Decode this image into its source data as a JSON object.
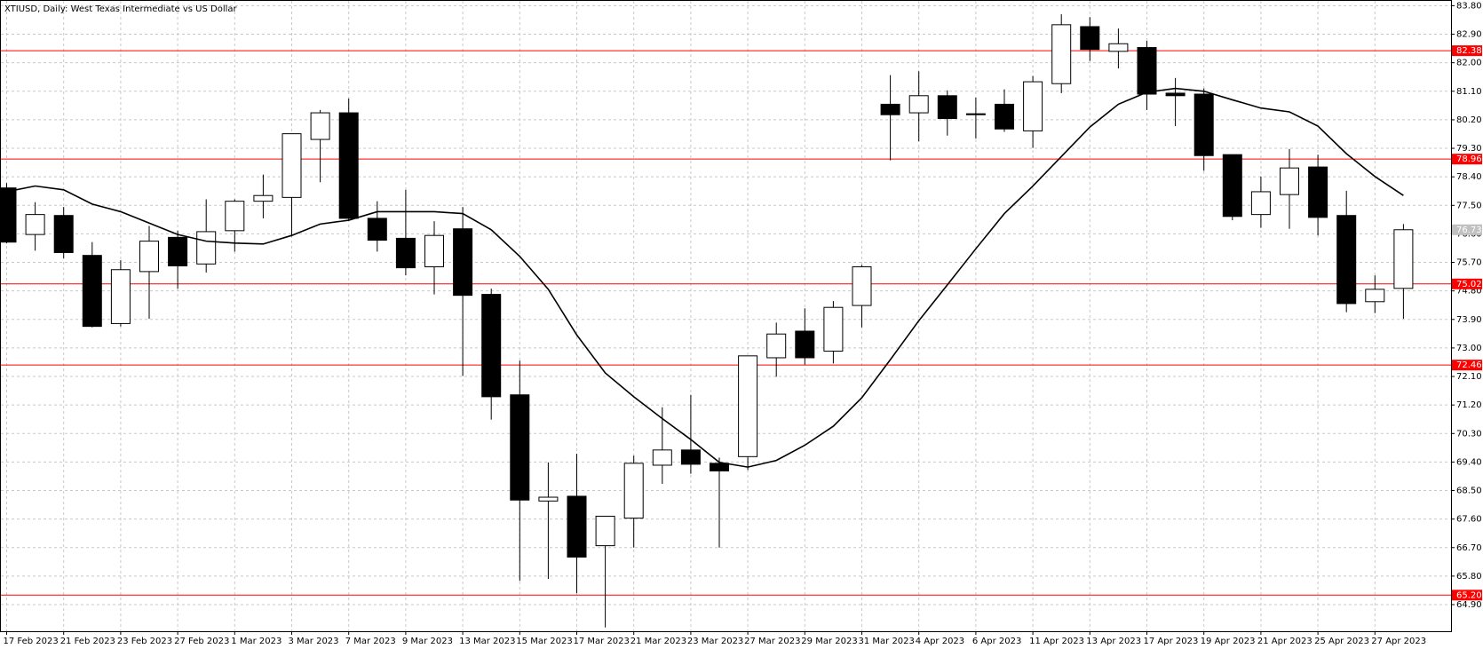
{
  "chart_data": {
    "type": "candlestick",
    "title": "XTIUSD, Daily:  West Texas Intermediate vs US Dollar",
    "categories": [
      "17 Feb 2023",
      null,
      "21 Feb 2023",
      null,
      "23 Feb 2023",
      null,
      "27 Feb 2023",
      null,
      "1 Mar 2023",
      null,
      "3 Mar 2023",
      null,
      "7 Mar 2023",
      null,
      "9 Mar 2023",
      null,
      "13 Mar 2023",
      null,
      "15 Mar 2023",
      null,
      "17 Mar 2023",
      null,
      "21 Mar 2023",
      null,
      "23 Mar 2023",
      null,
      "27 Mar 2023",
      null,
      "29 Mar 2023",
      null,
      "31 Mar 2023",
      null,
      "4 Apr 2023",
      null,
      "6 Apr 2023",
      null,
      "11 Apr 2023",
      null,
      "13 Apr 2023",
      null,
      "17 Apr 2023",
      null,
      "19 Apr 2023",
      null,
      "21 Apr 2023",
      null,
      "25 Apr 2023",
      null,
      "27 Apr 2023",
      null
    ],
    "open": [
      78.05,
      76.58,
      77.18,
      75.92,
      73.77,
      75.41,
      76.49,
      75.65,
      76.7,
      77.63,
      77.75,
      79.58,
      80.42,
      77.09,
      76.46,
      75.56,
      76.76,
      74.69,
      71.52,
      68.17,
      68.32,
      66.76,
      67.63,
      69.3,
      69.78,
      69.36,
      69.57,
      72.69,
      73.53,
      72.9,
      74.34,
      80.69,
      80.42,
      80.96,
      80.39,
      80.69,
      79.85,
      81.34,
      83.14,
      82.36,
      82.48,
      81.04,
      81.01,
      79.1,
      77.21,
      77.84,
      78.71,
      77.18,
      74.46,
      74.88
    ],
    "high": [
      78.2,
      77.6,
      77.45,
      76.34,
      75.77,
      76.85,
      76.7,
      77.69,
      77.69,
      78.47,
      79.76,
      80.51,
      80.87,
      77.63,
      77.99,
      77.0,
      77.45,
      74.87,
      72.6,
      69.39,
      69.66,
      67.69,
      69.6,
      71.13,
      71.52,
      69.54,
      72.75,
      73.8,
      74.25,
      74.48,
      75.62,
      81.61,
      81.73,
      81.13,
      80.9,
      81.16,
      81.58,
      83.53,
      83.44,
      83.08,
      82.69,
      81.52,
      81.19,
      79.1,
      78.41,
      79.28,
      79.1,
      77.96,
      75.29,
      76.91
    ],
    "low": [
      76.3,
      76.07,
      75.83,
      73.65,
      73.68,
      73.92,
      74.87,
      75.38,
      76.04,
      77.09,
      76.52,
      78.23,
      77.03,
      76.04,
      75.29,
      74.69,
      72.12,
      70.74,
      65.65,
      65.71,
      65.26,
      64.18,
      66.7,
      68.71,
      69.03,
      66.7,
      69.15,
      72.09,
      72.48,
      72.51,
      73.65,
      78.92,
      79.52,
      79.7,
      79.61,
      79.82,
      79.31,
      81.04,
      82.06,
      81.82,
      80.51,
      80.0,
      78.59,
      77.03,
      76.79,
      76.76,
      76.55,
      74.13,
      74.1,
      73.92
    ],
    "close": [
      76.34,
      77.21,
      76.01,
      73.68,
      75.47,
      76.37,
      75.59,
      76.67,
      77.63,
      77.81,
      79.76,
      80.42,
      77.09,
      76.4,
      75.53,
      76.55,
      74.66,
      71.46,
      68.2,
      68.29,
      66.4,
      67.69,
      69.36,
      69.78,
      69.33,
      69.12,
      72.75,
      73.44,
      72.69,
      74.28,
      75.56,
      80.36,
      80.96,
      80.24,
      80.36,
      79.91,
      81.4,
      83.2,
      82.42,
      82.6,
      81.01,
      80.96,
      79.07,
      77.15,
      77.93,
      78.68,
      77.12,
      74.4,
      74.85,
      76.73
    ],
    "ma_values": [
      77.93,
      78.11,
      77.99,
      77.54,
      77.3,
      76.94,
      76.58,
      76.37,
      76.31,
      76.28,
      76.55,
      76.91,
      77.03,
      77.3,
      77.3,
      77.3,
      77.24,
      76.73,
      75.89,
      74.85,
      73.41,
      72.21,
      71.46,
      70.77,
      70.11,
      69.39,
      69.24,
      69.45,
      69.93,
      70.53,
      71.43,
      72.63,
      73.86,
      74.99,
      76.13,
      77.24,
      78.11,
      79.04,
      79.97,
      80.69,
      81.07,
      81.19,
      81.1,
      80.83,
      80.57,
      80.45,
      80.0,
      79.13,
      78.41,
      77.81
    ],
    "up_color": "#ffffff",
    "down_color": "#000000",
    "ma_color": "#000000",
    "hlines": [
      82.38,
      78.96,
      75.02,
      72.46,
      {
        "value": 65.2,
        "label": "65.20"
      }
    ],
    "hline_color": "#ff0000",
    "last_price": 76.73,
    "last_price_color": "#c0c0c0",
    "ylim": [
      64.06,
      83.98
    ],
    "yticks": [
      {
        "value": 83.8,
        "label": "83.80"
      },
      {
        "value": 82.9,
        "label": "82.90"
      },
      {
        "value": 82,
        "label": "82.00"
      },
      {
        "value": 81.1,
        "label": "81.10"
      },
      {
        "value": 80.2,
        "label": "80.20"
      },
      {
        "value": 79.3,
        "label": "79.30"
      },
      {
        "value": 78.4,
        "label": "78.40"
      },
      {
        "value": 77.5,
        "label": "77.50"
      },
      {
        "value": 76.6,
        "label": "76.60"
      },
      {
        "value": 75.7,
        "label": "75.70"
      },
      {
        "value": 74.8,
        "label": "74.80"
      },
      {
        "value": 73.9,
        "label": "73.90"
      },
      {
        "value": 73,
        "label": "73.00"
      },
      {
        "value": 72.1,
        "label": "72.10"
      },
      {
        "value": 71.2,
        "label": "71.20"
      },
      {
        "value": 70.3,
        "label": "70.30"
      },
      {
        "value": 69.4,
        "label": "69.40"
      },
      {
        "value": 68.5,
        "label": "68.50"
      },
      {
        "value": 67.6,
        "label": "67.60"
      },
      {
        "value": 66.7,
        "label": "66.70"
      },
      {
        "value": 65.8,
        "label": "65.80"
      },
      {
        "value": 64.9,
        "label": "64.90"
      }
    ],
    "grid": true
  }
}
